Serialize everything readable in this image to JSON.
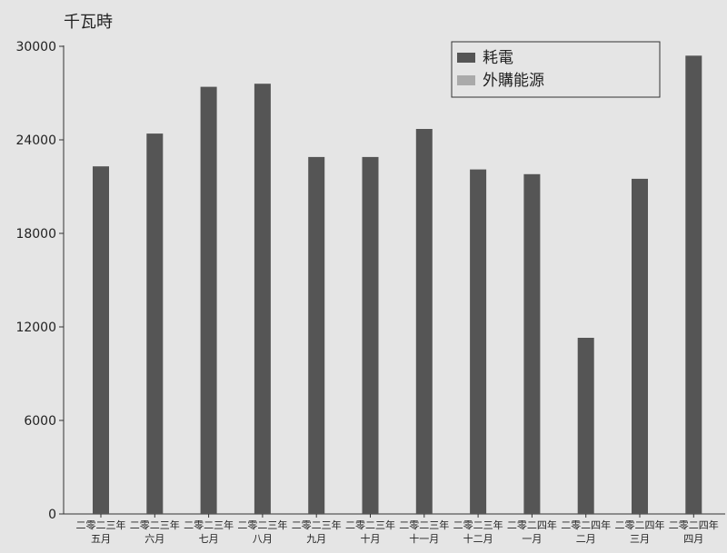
{
  "chart_data": {
    "type": "bar",
    "ylabel": "千瓦時",
    "ylim": [
      0,
      30000
    ],
    "yticks": [
      0,
      6000,
      12000,
      18000,
      24000,
      30000
    ],
    "categories": [
      [
        "二零二三年",
        "五月"
      ],
      [
        "二零二三年",
        "六月"
      ],
      [
        "二零二三年",
        "七月"
      ],
      [
        "二零二三年",
        "八月"
      ],
      [
        "二零二三年",
        "九月"
      ],
      [
        "二零二三年",
        "十月"
      ],
      [
        "二零二三年",
        "十一月"
      ],
      [
        "二零二三年",
        "十二月"
      ],
      [
        "二零二四年",
        "一月"
      ],
      [
        "二零二四年",
        "二月"
      ],
      [
        "二零二四年",
        "三月"
      ],
      [
        "二零二四年",
        "四月"
      ]
    ],
    "series": [
      {
        "name": "耗電",
        "color": "#555555",
        "values": [
          22300,
          24400,
          27400,
          27600,
          22900,
          22900,
          24700,
          22100,
          21800,
          11300,
          21500,
          29400
        ]
      },
      {
        "name": "外購能源",
        "color": "#aaaaaa",
        "values": [
          0,
          0,
          0,
          0,
          0,
          0,
          0,
          0,
          0,
          0,
          0,
          0
        ]
      }
    ],
    "legend": "top-right",
    "grid": false
  }
}
